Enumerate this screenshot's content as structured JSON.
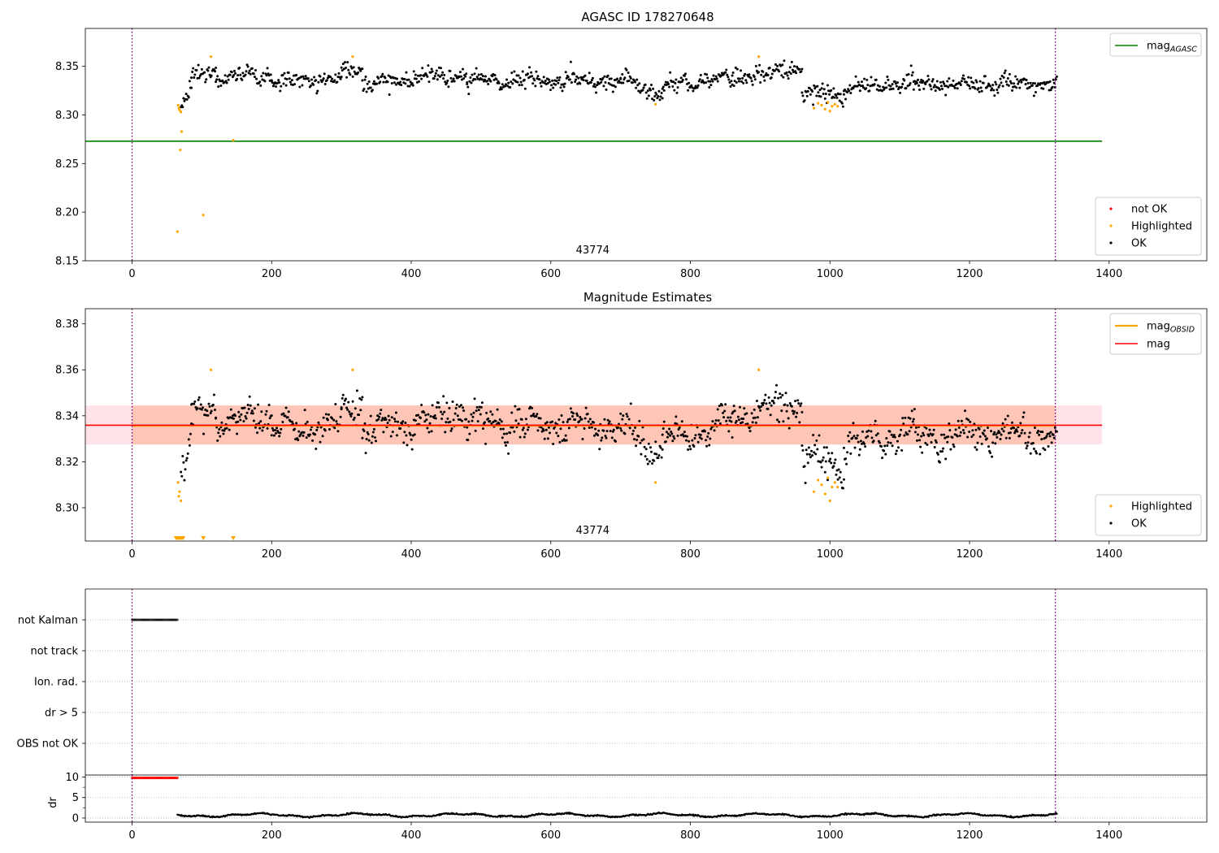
{
  "colors": {
    "ok": "#000000",
    "highlighted": "#ffa500",
    "not_ok": "#ff0000",
    "mag_agasc": "#008000",
    "mag_obsid": "#ffa500",
    "mag": "#ff0000",
    "obsid_band": "#ffa07a",
    "mag_band": "#ffc0cb",
    "obs_boundary": "#800080",
    "grid": "#b0b0b0"
  },
  "chart_data": [
    {
      "id": "agasc",
      "type": "scatter",
      "title": "AGASC ID 178270648",
      "xlim": [
        -67,
        1540
      ],
      "ylim": [
        8.15,
        8.389
      ],
      "xticks": [
        "0",
        "200",
        "400",
        "600",
        "800",
        "1000",
        "1200",
        "1400"
      ],
      "xtick_values": [
        0,
        200,
        400,
        600,
        800,
        1000,
        1200,
        1400
      ],
      "yticks": [
        "8.15",
        "8.20",
        "8.25",
        "8.30",
        "8.35"
      ],
      "ytick_values": [
        8.15,
        8.2,
        8.25,
        8.3,
        8.35
      ],
      "obs_boundaries": [
        0,
        1323
      ],
      "obsid_label": "43774",
      "obsid_label_x": 660,
      "lines": [
        {
          "name": "mag_AGASC",
          "label_base": "mag",
          "label_sub": "AGASC",
          "y": 8.273,
          "x_range": [
            -67,
            1390
          ],
          "color_key": "mag_agasc"
        }
      ],
      "legend_top": [
        "mag_AGASC"
      ],
      "legend_bottom": [
        {
          "label": "not OK",
          "color_key": "not_ok"
        },
        {
          "label": "Highlighted",
          "color_key": "highlighted"
        },
        {
          "label": "OK",
          "color_key": "ok"
        }
      ],
      "highlighted_points": [
        [
          65,
          8.18
        ],
        [
          66,
          8.31
        ],
        [
          67,
          8.307
        ],
        [
          68,
          8.305
        ],
        [
          69,
          8.264
        ],
        [
          70,
          8.303
        ],
        [
          71,
          8.283
        ],
        [
          102,
          8.197
        ],
        [
          113,
          8.36
        ],
        [
          145,
          8.274
        ],
        [
          316,
          8.36
        ],
        [
          750,
          8.311
        ],
        [
          898,
          8.36
        ],
        [
          977,
          8.307
        ],
        [
          983,
          8.312
        ],
        [
          988,
          8.31
        ],
        [
          993,
          8.306
        ],
        [
          997,
          8.313
        ],
        [
          1000,
          8.304
        ],
        [
          1003,
          8.309
        ],
        [
          1007,
          8.311
        ],
        [
          1011,
          8.309
        ]
      ],
      "ok_series": [
        {
          "x_start": 70,
          "x_end": 85,
          "y_start": 8.312,
          "y_end": 8.324
        },
        {
          "x_start": 85,
          "x_end": 120,
          "y_start": 8.338,
          "y_end": 8.345
        },
        {
          "x_start": 120,
          "x_end": 200,
          "y_start": 8.338,
          "y_end": 8.341
        },
        {
          "x_start": 200,
          "x_end": 300,
          "y_start": 8.334,
          "y_end": 8.336
        },
        {
          "x_start": 300,
          "x_end": 330,
          "y_start": 8.345,
          "y_end": 8.348
        },
        {
          "x_start": 330,
          "x_end": 480,
          "y_start": 8.333,
          "y_end": 8.341
        },
        {
          "x_start": 480,
          "x_end": 700,
          "y_start": 8.336,
          "y_end": 8.335
        },
        {
          "x_start": 700,
          "x_end": 760,
          "y_start": 8.335,
          "y_end": 8.322
        },
        {
          "x_start": 760,
          "x_end": 860,
          "y_start": 8.328,
          "y_end": 8.338
        },
        {
          "x_start": 860,
          "x_end": 960,
          "y_start": 8.34,
          "y_end": 8.346
        },
        {
          "x_start": 960,
          "x_end": 1020,
          "y_start": 8.322,
          "y_end": 8.318
        },
        {
          "x_start": 1020,
          "x_end": 1120,
          "y_start": 8.326,
          "y_end": 8.333
        },
        {
          "x_start": 1120,
          "x_end": 1325,
          "y_start": 8.331,
          "y_end": 8.333
        }
      ],
      "ok_scatter": 0.0095
    },
    {
      "id": "magnitude",
      "type": "scatter",
      "title": "Magnitude Estimates",
      "xlim": [
        -67,
        1540
      ],
      "ylim": [
        8.2855,
        8.3866
      ],
      "xticks": [
        "0",
        "200",
        "400",
        "600",
        "800",
        "1000",
        "1200",
        "1400"
      ],
      "xtick_values": [
        0,
        200,
        400,
        600,
        800,
        1000,
        1200,
        1400
      ],
      "yticks": [
        "8.30",
        "8.32",
        "8.34",
        "8.36",
        "8.38"
      ],
      "ytick_values": [
        8.3,
        8.32,
        8.34,
        8.36,
        8.38
      ],
      "obs_boundaries": [
        0,
        1323
      ],
      "obsid_label": "43774",
      "obsid_label_x": 660,
      "bands": [
        {
          "y_low": 8.3275,
          "y_high": 8.3445,
          "x_range": [
            -67,
            1390
          ],
          "color_key": "mag_band"
        },
        {
          "y_low": 8.3275,
          "y_high": 8.3445,
          "x_range": [
            0,
            1323
          ],
          "color_key": "obsid_band"
        }
      ],
      "lines": [
        {
          "name": "mag_OBSID",
          "label_base": "mag",
          "label_sub": "OBSID",
          "y": 8.3357,
          "x_range": [
            0,
            1323
          ],
          "color_key": "mag_obsid"
        },
        {
          "name": "mag",
          "label_base": "mag",
          "label_sub": "",
          "y": 8.3359,
          "x_range": [
            -67,
            1390
          ],
          "color_key": "mag"
        }
      ],
      "legend_top": [
        "mag_OBSID",
        "mag"
      ],
      "legend_bottom": [
        {
          "label": "Highlighted",
          "color_key": "highlighted"
        },
        {
          "label": "OK",
          "color_key": "ok"
        }
      ],
      "highlighted_points": [
        [
          66,
          8.311
        ],
        [
          67,
          8.305
        ],
        [
          68,
          8.307
        ],
        [
          70,
          8.303
        ],
        [
          113,
          8.36
        ],
        [
          316,
          8.36
        ],
        [
          750,
          8.311
        ],
        [
          898,
          8.36
        ],
        [
          977,
          8.307
        ],
        [
          983,
          8.312
        ],
        [
          988,
          8.31
        ],
        [
          993,
          8.306
        ],
        [
          997,
          8.313
        ],
        [
          1000,
          8.303
        ],
        [
          1003,
          8.309
        ],
        [
          1007,
          8.311
        ],
        [
          1011,
          8.309
        ]
      ],
      "offscale_markers": [
        63,
        65,
        67,
        69,
        71,
        73,
        102,
        145
      ],
      "ok_series": [
        {
          "x_start": 70,
          "x_end": 85,
          "y_start": 8.318,
          "y_end": 8.325
        },
        {
          "x_start": 85,
          "x_end": 120,
          "y_start": 8.34,
          "y_end": 8.345
        },
        {
          "x_start": 120,
          "x_end": 200,
          "y_start": 8.336,
          "y_end": 8.341
        },
        {
          "x_start": 200,
          "x_end": 300,
          "y_start": 8.334,
          "y_end": 8.336
        },
        {
          "x_start": 300,
          "x_end": 330,
          "y_start": 8.344,
          "y_end": 8.347
        },
        {
          "x_start": 330,
          "x_end": 480,
          "y_start": 8.333,
          "y_end": 8.341
        },
        {
          "x_start": 480,
          "x_end": 700,
          "y_start": 8.336,
          "y_end": 8.335
        },
        {
          "x_start": 700,
          "x_end": 760,
          "y_start": 8.335,
          "y_end": 8.324
        },
        {
          "x_start": 760,
          "x_end": 860,
          "y_start": 8.328,
          "y_end": 8.338
        },
        {
          "x_start": 860,
          "x_end": 960,
          "y_start": 8.34,
          "y_end": 8.346
        },
        {
          "x_start": 960,
          "x_end": 1020,
          "y_start": 8.322,
          "y_end": 8.317
        },
        {
          "x_start": 1020,
          "x_end": 1120,
          "y_start": 8.326,
          "y_end": 8.333
        },
        {
          "x_start": 1120,
          "x_end": 1325,
          "y_start": 8.331,
          "y_end": 8.333
        }
      ],
      "ok_scatter": 0.0075
    },
    {
      "id": "flags",
      "type": "scatter",
      "xlim": [
        -67,
        1540
      ],
      "xticks": [
        "0",
        "200",
        "400",
        "600",
        "800",
        "1000",
        "1200",
        "1400"
      ],
      "xtick_values": [
        0,
        200,
        400,
        600,
        800,
        1000,
        1200,
        1400
      ],
      "categories": [
        "not Kalman",
        "not track",
        "Ion. rad.",
        "dr > 5",
        "OBS not OK"
      ],
      "obs_boundaries": [
        0,
        1323
      ],
      "flag_segments": [
        {
          "category": "not Kalman",
          "x_range": [
            0,
            65
          ],
          "color_key": "ok"
        }
      ]
    },
    {
      "id": "dr",
      "type": "scatter",
      "xlim": [
        -67,
        1540
      ],
      "ylim": [
        -1,
        10.5
      ],
      "ylabel": "dr",
      "xticks": [
        "0",
        "200",
        "400",
        "600",
        "800",
        "1000",
        "1200",
        "1400"
      ],
      "xtick_values": [
        0,
        200,
        400,
        600,
        800,
        1000,
        1200,
        1400
      ],
      "yticks": [
        "0",
        "5",
        "10"
      ],
      "ytick_values": [
        0,
        5,
        10
      ],
      "obs_boundaries": [
        0,
        1323
      ],
      "not_ok_range": [
        0,
        65
      ],
      "not_ok_value": 9.8,
      "ok_range": [
        65,
        1325
      ],
      "ok_mean": 0.7
    }
  ]
}
